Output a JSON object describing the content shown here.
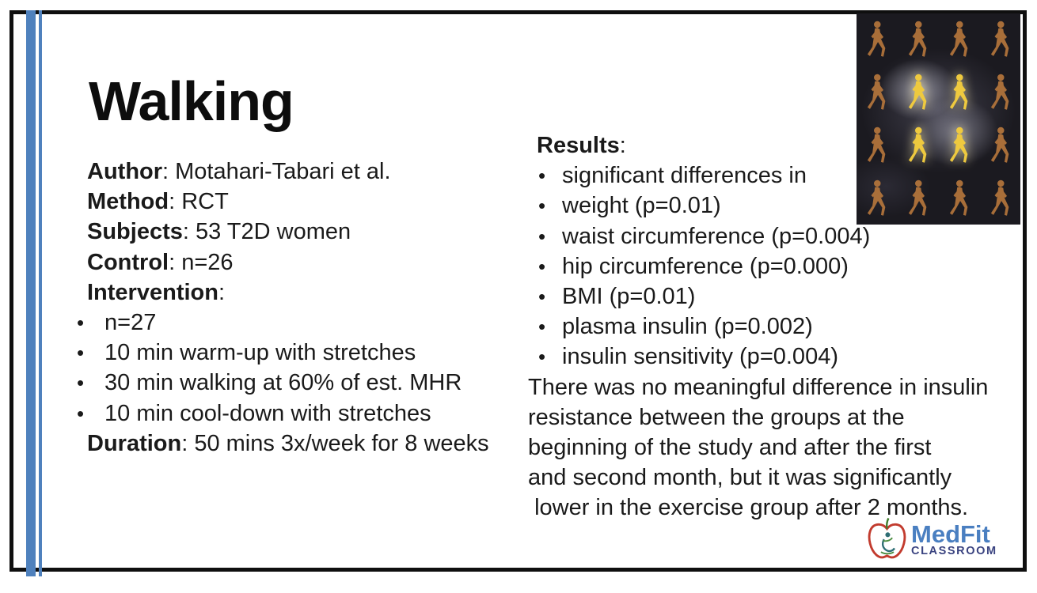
{
  "title": "Walking",
  "ui": {
    "bullet_char": "•"
  },
  "left_panel": {
    "fields": [
      {
        "label": "Author",
        "value": ": Motahari-Tabari et al."
      },
      {
        "label": "Method",
        "value": ": RCT"
      },
      {
        "label": "Subjects",
        "value": ": 53 T2D women"
      },
      {
        "label": "Control",
        "value": ": n=26"
      },
      {
        "label": "Intervention",
        "value": ":"
      }
    ],
    "bullets": [
      "n=27",
      "10 min warm-up with stretches",
      "30 min walking at 60% of est. MHR",
      "10 min cool-down with stretches"
    ],
    "duration": {
      "label": "Duration",
      "value": ": 50 mins 3x/week for 8 weeks"
    }
  },
  "right_panel": {
    "heading": {
      "label": "Results",
      "value": ":"
    },
    "bullets": [
      "significant differences in",
      "weight (p=0.01)",
      "waist circumference (p=0.004)",
      "hip circumference (p=0.000)",
      "BMI (p=0.01)",
      "plasma insulin (p=0.002)",
      "insulin sensitivity (p=0.004)"
    ],
    "paragraph": "There was no meaningful difference in insulin\nresistance between the groups at the\nbeginning of the study and after the first\nand second month, but it was significantly\n lower in the exercise group after 2 months."
  },
  "walkers": {
    "grid": [
      "dddd",
      "dbbd",
      "dbbd",
      "dddd"
    ]
  },
  "logo": {
    "name": "MedFit",
    "subtitle": "CLASSROOM"
  },
  "colors": {
    "accent_bar": "#4f81bd",
    "border": "#0f0f0f",
    "text": "#1a1a1a",
    "logo_blue": "#4a7fc1",
    "logo_navy": "#3a4380",
    "logo_red": "#c23b2e",
    "walker_dim": "#b5763c",
    "walker_bright": "#eec93f",
    "image_background": "#1b1a20"
  }
}
